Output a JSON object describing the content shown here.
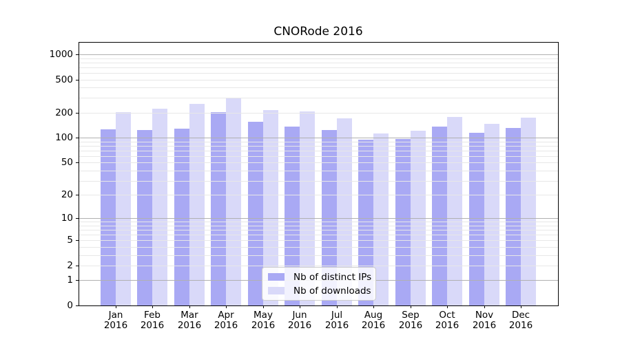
{
  "title": "CNORode 2016",
  "chart_data": {
    "type": "bar",
    "title": "CNORode 2016",
    "categories": [
      "Jan 2016",
      "Feb 2016",
      "Mar 2016",
      "Apr 2016",
      "May 2016",
      "Jun 2016",
      "Jul 2016",
      "Aug 2016",
      "Sep 2016",
      "Oct 2016",
      "Nov 2016",
      "Dec 2016"
    ],
    "series": [
      {
        "name": "Nb of distinct IPs",
        "color": "#a9a9f4",
        "values": [
          127,
          123,
          128,
          203,
          155,
          136,
          123,
          95,
          96,
          135,
          115,
          130
        ]
      },
      {
        "name": "Nb of downloads",
        "color": "#d9d9f9",
        "values": [
          205,
          225,
          255,
          305,
          215,
          209,
          170,
          112,
          122,
          177,
          147,
          176
        ]
      }
    ],
    "xlabel": "",
    "ylabel": "",
    "y_scale": "log1p",
    "y_ticks": [
      0,
      1,
      2,
      5,
      10,
      20,
      50,
      100,
      200,
      500,
      1000
    ],
    "ylim": [
      0,
      1400
    ],
    "grid": true,
    "grid_major_ticks": [
      1,
      10,
      100,
      1000
    ],
    "grid_major_color": "#b0b0b0",
    "grid_minor_color": "#e7e7e7",
    "axis_color": "#000000",
    "legend_position": "lower center"
  },
  "legend": {
    "items": [
      {
        "label": "Nb of distinct IPs"
      },
      {
        "label": "Nb of downloads"
      }
    ]
  }
}
